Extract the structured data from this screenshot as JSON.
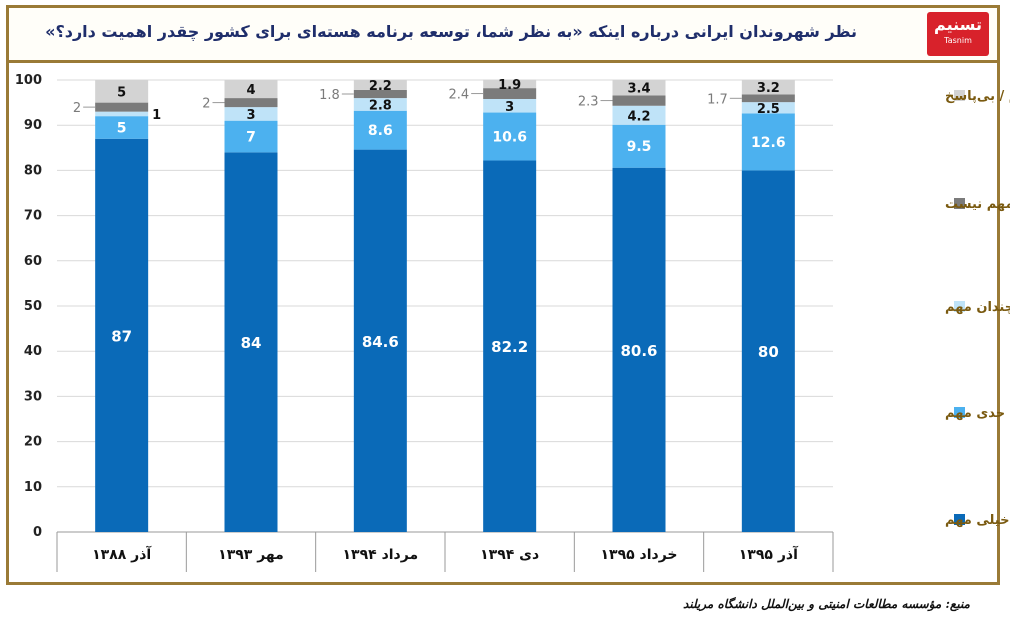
{
  "title": "نظر شهروندان ایرانی درباره اینکه «به نظر شما، توسعه برنامه هسته‌ای برای کشور چقدر اهمیت دارد؟»",
  "logo": {
    "name": "تسنیم",
    "sub": "Tasnim"
  },
  "source": "منبع: مؤسسه مطالعات امنیتی و بین‌الملل دانشگاه مریلند",
  "colors": {
    "frame": "#9a7a36",
    "title": "#1f2e6b",
    "legend_text": "#7a5a10"
  },
  "chart_data": {
    "type": "bar",
    "stacked": true,
    "categories": [
      "آذر ۱۳۸۸",
      "مهر ۱۳۹۳",
      "مرداد ۱۳۹۴",
      "دی ۱۳۹۴",
      "خرداد ۱۳۹۵",
      "آذر ۱۳۹۵"
    ],
    "ylim": [
      0,
      100
    ],
    "yticks": [
      0,
      10,
      20,
      30,
      40,
      50,
      60,
      70,
      80,
      90,
      100
    ],
    "grid": true,
    "legend_position": "right",
    "series": [
      {
        "name": "خیلی مهم",
        "color": "#0a6ab8",
        "values": [
          87,
          84,
          84.6,
          82.2,
          80.6,
          80
        ],
        "labels": [
          "87",
          "84",
          "84.6",
          "82.2",
          "80.6",
          "80"
        ]
      },
      {
        "name": "تا حدی مهم",
        "color": "#4cb1ef",
        "values": [
          5,
          7,
          8.6,
          10.6,
          9.5,
          12.6
        ],
        "labels": [
          "5",
          "7",
          "8.6",
          "10.6",
          "9.5",
          "12.6"
        ]
      },
      {
        "name": "نه چندان مهم",
        "color": "#bfe3f8",
        "values": [
          1,
          3,
          2.8,
          3,
          4.2,
          2.5
        ],
        "labels": [
          "1",
          "3",
          "2.8",
          "3",
          "4.2",
          "2.5"
        ]
      },
      {
        "name": "اصلا مهم نیست",
        "color": "#7b7b7b",
        "values": [
          2,
          2,
          1.8,
          2.4,
          2.3,
          1.7
        ],
        "labels": [
          "2",
          "2",
          "1.8",
          "2.4",
          "2.3",
          "1.7"
        ]
      },
      {
        "name": "نمی‌دانم / بی‌پاسخ",
        "color": "#d3d3d3",
        "values": [
          5,
          4,
          2.2,
          1.9,
          3.4,
          3.2
        ],
        "labels": [
          "5",
          "4",
          "2.2",
          "1.9",
          "3.4",
          "3.2"
        ]
      }
    ]
  }
}
